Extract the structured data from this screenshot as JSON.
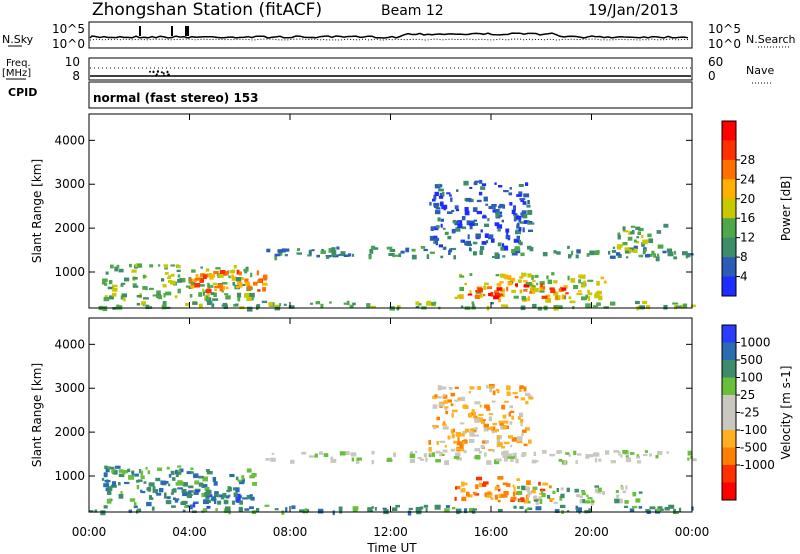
{
  "header": {
    "title": "Zhongshan Station (fitACF)",
    "beam": "Beam 12",
    "date": "19/Jan/2013"
  },
  "strip1": {
    "left_label": "N.Sky",
    "right_label": "N.Search",
    "left_ticks": [
      "10^5",
      "10^0"
    ],
    "right_ticks": [
      "10^5",
      "10^0"
    ]
  },
  "strip2": {
    "left_label_1": "Freq.",
    "left_label_2": "[MHz]",
    "right_label": "Nave",
    "left_ticks": [
      "10",
      "8"
    ],
    "right_ticks": [
      "60",
      "0"
    ]
  },
  "cpid": {
    "label": "CPID",
    "text": "normal (fast stereo) 153"
  },
  "colors": {
    "power_scale": [
      "#1e2cff",
      "#2a5cb8",
      "#3d8c6a",
      "#4ea84a",
      "#c8c800",
      "#ffb000",
      "#ff7000",
      "#ff3000",
      "#ff0000"
    ],
    "velocity_scale": [
      "#2a3cff",
      "#2a6cb0",
      "#3d8c6a",
      "#68c03a",
      "#c8c8c0",
      "#c8c8c0",
      "#ffb020",
      "#ff8000",
      "#ff3000",
      "#ff0000"
    ]
  },
  "chart_data": [
    {
      "type": "heatmap",
      "quantity": "Power",
      "ylabel": "Slant Range [km]",
      "ylim": [
        180,
        4600
      ],
      "yticks": [
        "1000",
        "2000",
        "3000",
        "4000"
      ],
      "xticks": [
        "00:00",
        "04:00",
        "08:00",
        "12:00",
        "16:00",
        "20:00",
        "00:00"
      ],
      "colorbar": {
        "label": "Power [dB]",
        "ticks": [
          "4",
          "8",
          "12",
          "16",
          "20",
          "24",
          "28"
        ]
      },
      "regions": [
        {
          "t0": 0.0,
          "t1": 24.0,
          "r0": 200,
          "r1": 350,
          "level": 3
        },
        {
          "t0": 0.5,
          "t1": 6.5,
          "r0": 400,
          "r1": 1200,
          "level": 3
        },
        {
          "t0": 4.0,
          "t1": 7.0,
          "r0": 600,
          "r1": 1100,
          "level": 6
        },
        {
          "t0": 7.0,
          "t1": 24.0,
          "r0": 1350,
          "r1": 1600,
          "level": 2
        },
        {
          "t0": 14.5,
          "t1": 20.5,
          "r0": 400,
          "r1": 1000,
          "level": 4
        },
        {
          "t0": 15.0,
          "t1": 19.0,
          "r0": 450,
          "r1": 750,
          "level": 7
        },
        {
          "t0": 13.5,
          "t1": 17.5,
          "r0": 1600,
          "r1": 3100,
          "level": 1
        },
        {
          "t0": 21.0,
          "t1": 23.0,
          "r0": 1500,
          "r1": 2100,
          "level": 3
        }
      ]
    },
    {
      "type": "heatmap",
      "quantity": "Velocity",
      "ylabel": "Slant Range [km]",
      "ylim": [
        180,
        4600
      ],
      "yticks": [
        "1000",
        "2000",
        "3000",
        "4000"
      ],
      "xticks": [
        "00:00",
        "04:00",
        "08:00",
        "12:00",
        "16:00",
        "20:00",
        "00:00"
      ],
      "xlabel": "Time UT",
      "colorbar": {
        "label": "Velocity [m s-1]",
        "ticks": [
          "1000",
          "500",
          "100",
          "25",
          "-25",
          "-100",
          "-500",
          "-1000"
        ]
      },
      "regions": [
        {
          "t0": 0.0,
          "t1": 24.0,
          "r0": 200,
          "r1": 350,
          "level": 2
        },
        {
          "t0": 0.5,
          "t1": 6.5,
          "r0": 400,
          "r1": 1250,
          "level": 2
        },
        {
          "t0": 3.0,
          "t1": 6.0,
          "r0": 300,
          "r1": 700,
          "level": 1
        },
        {
          "t0": 7.0,
          "t1": 24.0,
          "r0": 1350,
          "r1": 1600,
          "level": 4
        },
        {
          "t0": 14.5,
          "t1": 18.5,
          "r0": 450,
          "r1": 1000,
          "level": 7
        },
        {
          "t0": 17.0,
          "t1": 22.0,
          "r0": 400,
          "r1": 800,
          "level": 3
        },
        {
          "t0": 13.5,
          "t1": 17.5,
          "r0": 1600,
          "r1": 3100,
          "level": 6
        }
      ]
    }
  ]
}
